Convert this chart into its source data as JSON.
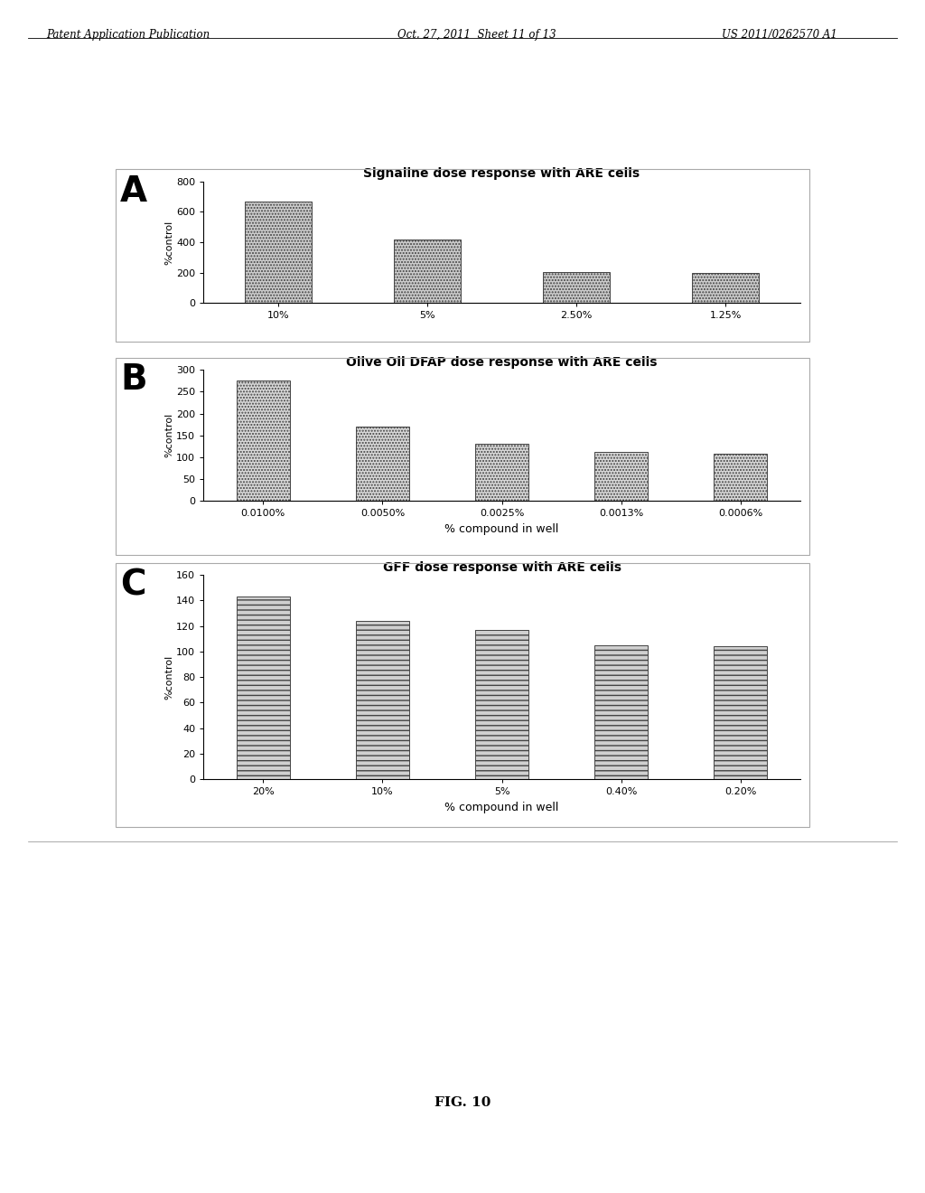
{
  "panel_A": {
    "title": "Signaline dose response with ARE cells",
    "label": "A",
    "categories": [
      "10%",
      "5%",
      "2.50%",
      "1.25%"
    ],
    "values": [
      670,
      420,
      205,
      195
    ],
    "ylabel": "%control",
    "xlabel": "",
    "ylim": [
      0,
      800
    ],
    "yticks": [
      0,
      200,
      400,
      600,
      800
    ],
    "bar_color": "#cccccc",
    "hatch": ".....",
    "has_xlabel": false
  },
  "panel_B": {
    "title": "Olive Oil DFAP dose response with ARE cells",
    "label": "B",
    "categories": [
      "0.0100%",
      "0.0050%",
      "0.0025%",
      "0.0013%",
      "0.0006%"
    ],
    "values": [
      275,
      170,
      130,
      112,
      108
    ],
    "ylabel": "%control",
    "xlabel": "% compound in well",
    "ylim": [
      0,
      300
    ],
    "yticks": [
      0,
      50,
      100,
      150,
      200,
      250,
      300
    ],
    "bar_color": "#d8d8d8",
    "hatch": ".....",
    "has_xlabel": true
  },
  "panel_C": {
    "title": "GFF dose response with ARE cells",
    "label": "C",
    "categories": [
      "20%",
      "10%",
      "5%",
      "0.40%",
      "0.20%"
    ],
    "values": [
      143,
      124,
      117,
      105,
      104
    ],
    "ylabel": "%control",
    "xlabel": "% compound in well",
    "ylim": [
      0,
      160
    ],
    "yticks": [
      0,
      20,
      40,
      60,
      80,
      100,
      120,
      140,
      160
    ],
    "bar_color": "#d0d0d0",
    "hatch": "---",
    "has_xlabel": true
  },
  "fig_label": "FIG. 10",
  "header_left": "Patent Application Publication",
  "header_mid": "Oct. 27, 2011  Sheet 11 of 13",
  "header_right": "US 2011/0262570 A1",
  "background_color": "#ffffff",
  "box_color": "#aaaaaa",
  "label_A_fontsize": 30,
  "label_B_fontsize": 30,
  "label_C_fontsize": 30,
  "title_fontsize": 10,
  "tick_fontsize": 8,
  "ylabel_fontsize": 8,
  "xlabel_fontsize": 9
}
